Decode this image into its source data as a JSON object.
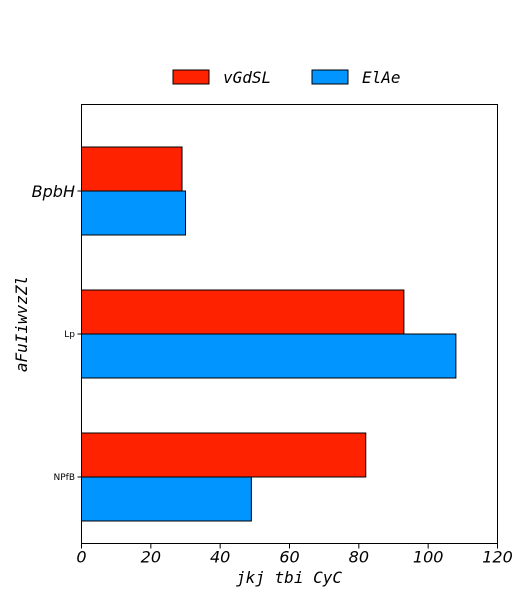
{
  "chart_data": {
    "type": "bar",
    "orientation": "horizontal",
    "categories": [
      "BpbH",
      "Lp",
      "NPfB"
    ],
    "series": [
      {
        "name": "vGdSL",
        "color": "#ff2200",
        "values": [
          29,
          93,
          82
        ]
      },
      {
        "name": "ElAe",
        "color": "#0095ff",
        "values": [
          30,
          108,
          49
        ]
      }
    ],
    "xlabel": "jkj tbi CyC",
    "ylabel": "aFuIiwvzZl",
    "xlim": [
      0,
      120
    ],
    "xticks": [
      "0",
      "20",
      "40",
      "60",
      "80",
      "100",
      "120"
    ],
    "grid": false,
    "legend_position": "top-center"
  }
}
